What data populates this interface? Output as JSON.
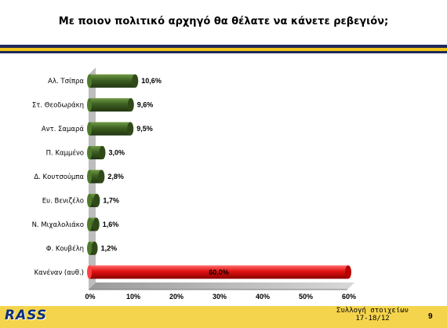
{
  "title": "Με ποιον πολιτικό αρχηγό θα θέλατε να κάνετε ρεβεγιόν;",
  "colors": {
    "bar_default": "#3d5f22",
    "bar_highlight": "#e01010",
    "rule_navy": "#1e2a57",
    "rule_gold": "#f0c419",
    "floor": "#c8c8c8"
  },
  "footer": {
    "logo": "RASS",
    "note_line1": "Συλλογή στοιχείων",
    "note_line2": "17-18/12",
    "page_number": "9"
  },
  "chart_data": {
    "type": "bar",
    "orientation": "horizontal",
    "categories": [
      "Αλ. Τσίπρα",
      "Στ. Θεοδωράκη",
      "Αντ. Σαμαρά",
      "Π. Καμμένο",
      "Δ. Κουτσούμπα",
      "Ευ. Βενιζέλο",
      "Ν. Μιχαλολιάκο",
      "Φ. Κουβέλη",
      "Κανέναν (αυθ.)"
    ],
    "values": [
      10.6,
      9.6,
      9.5,
      3.0,
      2.8,
      1.7,
      1.6,
      1.2,
      60.0
    ],
    "value_labels": [
      "10,6%",
      "9,6%",
      "9,5%",
      "3,0%",
      "2,8%",
      "1,7%",
      "1,6%",
      "1,2%",
      "60,0%"
    ],
    "highlight_index": 8,
    "xlim": [
      0,
      60
    ],
    "xticks": [
      0,
      10,
      20,
      30,
      40,
      50,
      60
    ],
    "xtick_labels": [
      "0%",
      "10%",
      "20%",
      "30%",
      "40%",
      "50%",
      "60%"
    ],
    "grid": false,
    "legend": "none"
  }
}
